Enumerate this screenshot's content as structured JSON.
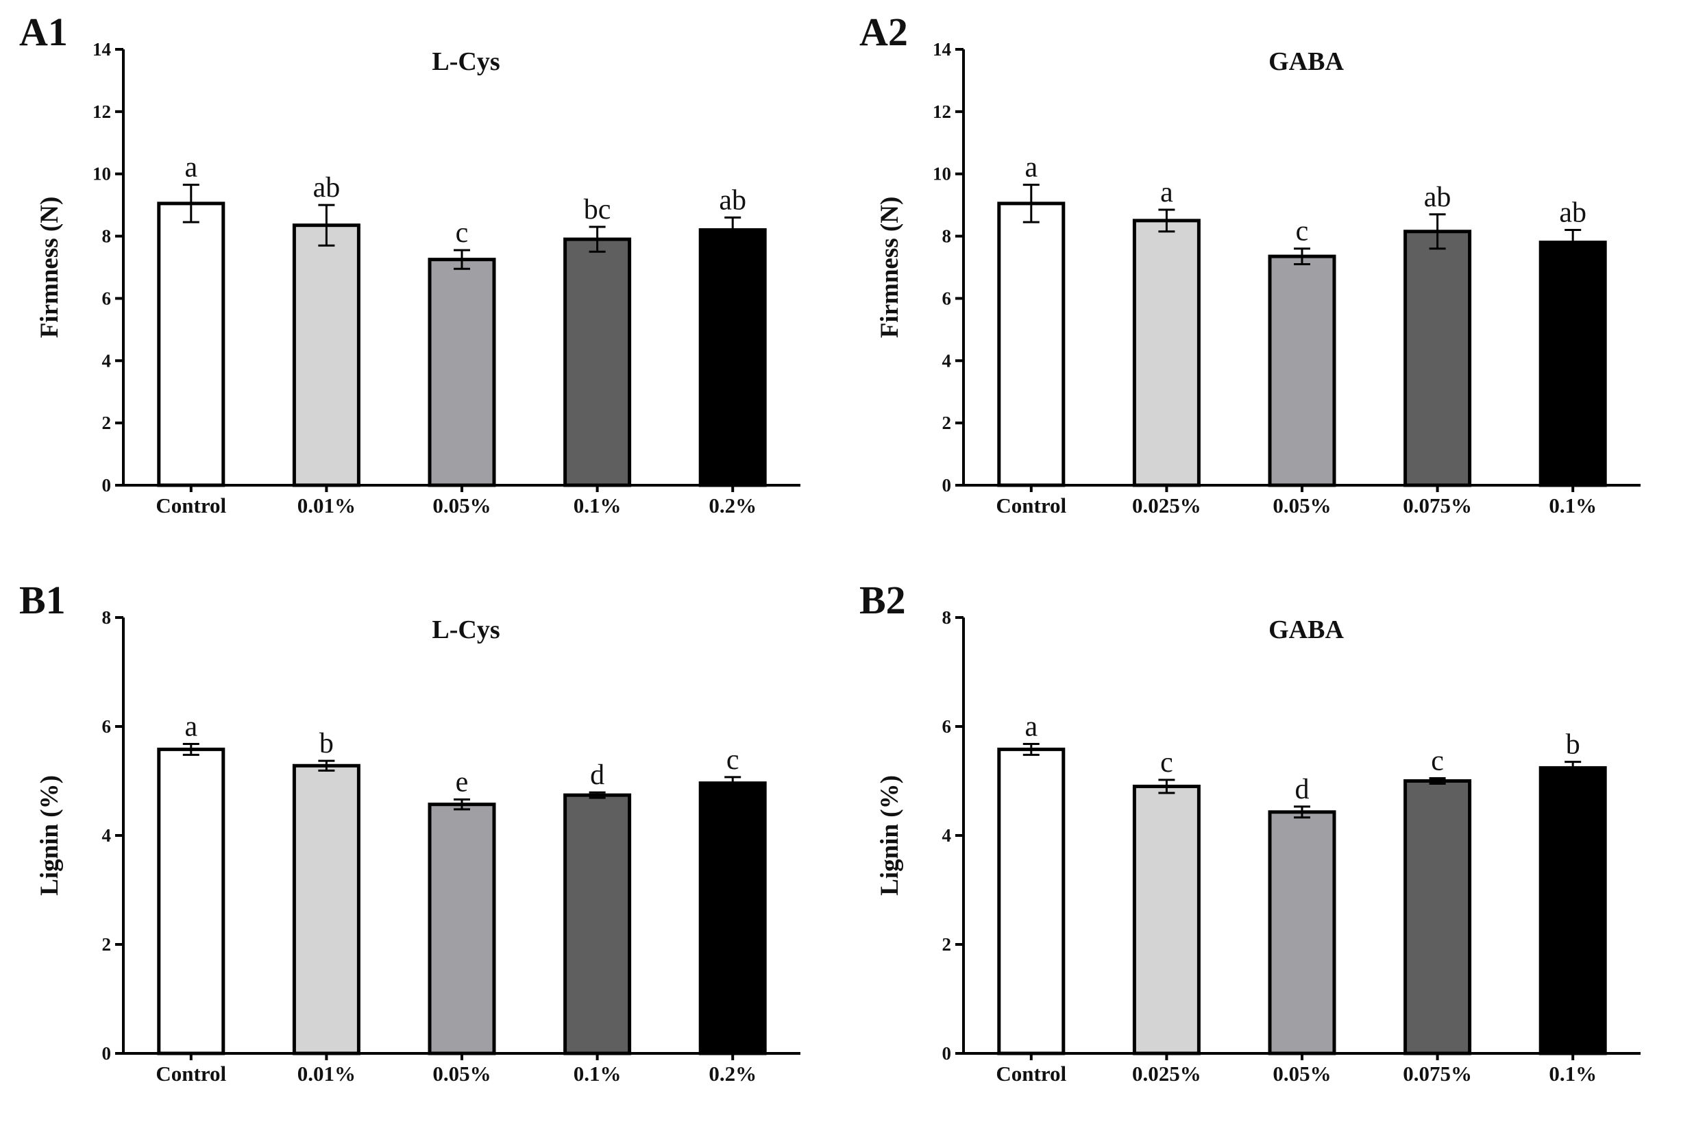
{
  "chart_data": [
    {
      "id": "A1",
      "type": "bar",
      "panel_label": "A1",
      "title": "L-Cys",
      "xlabel": "",
      "ylabel": "Firmness (N)",
      "ylim": [
        0,
        14
      ],
      "yticks": [
        0,
        2,
        4,
        6,
        8,
        10,
        12,
        14
      ],
      "categories": [
        "Control",
        "0.01%",
        "0.05%",
        "0.1%",
        "0.2%"
      ],
      "values": [
        9.05,
        8.35,
        7.25,
        7.9,
        8.2
      ],
      "errors": [
        0.6,
        0.65,
        0.3,
        0.4,
        0.4
      ],
      "significance": [
        "a",
        "ab",
        "c",
        "bc",
        "ab"
      ],
      "colors": [
        "#ffffff",
        "#d4d4d4",
        "#a0a0a4",
        "#5f5f5f",
        "#000000"
      ]
    },
    {
      "id": "A2",
      "type": "bar",
      "panel_label": "A2",
      "title": "GABA",
      "xlabel": "",
      "ylabel": "Firmness (N)",
      "ylim": [
        0,
        14
      ],
      "yticks": [
        0,
        2,
        4,
        6,
        8,
        10,
        12,
        14
      ],
      "categories": [
        "Control",
        "0.025%",
        "0.05%",
        "0.075%",
        "0.1%"
      ],
      "values": [
        9.05,
        8.5,
        7.35,
        8.15,
        7.8
      ],
      "errors": [
        0.6,
        0.35,
        0.25,
        0.55,
        0.4
      ],
      "significance": [
        "a",
        "a",
        "c",
        "ab",
        "ab"
      ],
      "colors": [
        "#ffffff",
        "#d4d4d4",
        "#a0a0a4",
        "#5f5f5f",
        "#000000"
      ]
    },
    {
      "id": "B1",
      "type": "bar",
      "panel_label": "B1",
      "title": "L-Cys",
      "xlabel": "",
      "ylabel": "Lignin (%)",
      "ylim": [
        0,
        8
      ],
      "yticks": [
        0,
        2,
        4,
        6,
        8
      ],
      "categories": [
        "Control",
        "0.01%",
        "0.05%",
        "0.1%",
        "0.2%"
      ],
      "values": [
        5.58,
        5.28,
        4.57,
        4.74,
        4.96
      ],
      "errors": [
        0.1,
        0.09,
        0.09,
        0.05,
        0.11
      ],
      "significance": [
        "a",
        "b",
        "e",
        "d",
        "c"
      ],
      "colors": [
        "#ffffff",
        "#d4d4d4",
        "#a0a0a4",
        "#5f5f5f",
        "#000000"
      ]
    },
    {
      "id": "B2",
      "type": "bar",
      "panel_label": "B2",
      "title": "GABA",
      "xlabel": "",
      "ylabel": "Lignin (%)",
      "ylim": [
        0,
        8
      ],
      "yticks": [
        0,
        2,
        4,
        6,
        8
      ],
      "categories": [
        "Control",
        "0.025%",
        "0.05%",
        "0.075%",
        "0.1%"
      ],
      "values": [
        5.58,
        4.9,
        4.43,
        5.0,
        5.24
      ],
      "errors": [
        0.1,
        0.12,
        0.1,
        0.05,
        0.11
      ],
      "significance": [
        "a",
        "c",
        "d",
        "c",
        "b"
      ],
      "colors": [
        "#ffffff",
        "#d4d4d4",
        "#a0a0a4",
        "#5f5f5f",
        "#000000"
      ]
    }
  ]
}
